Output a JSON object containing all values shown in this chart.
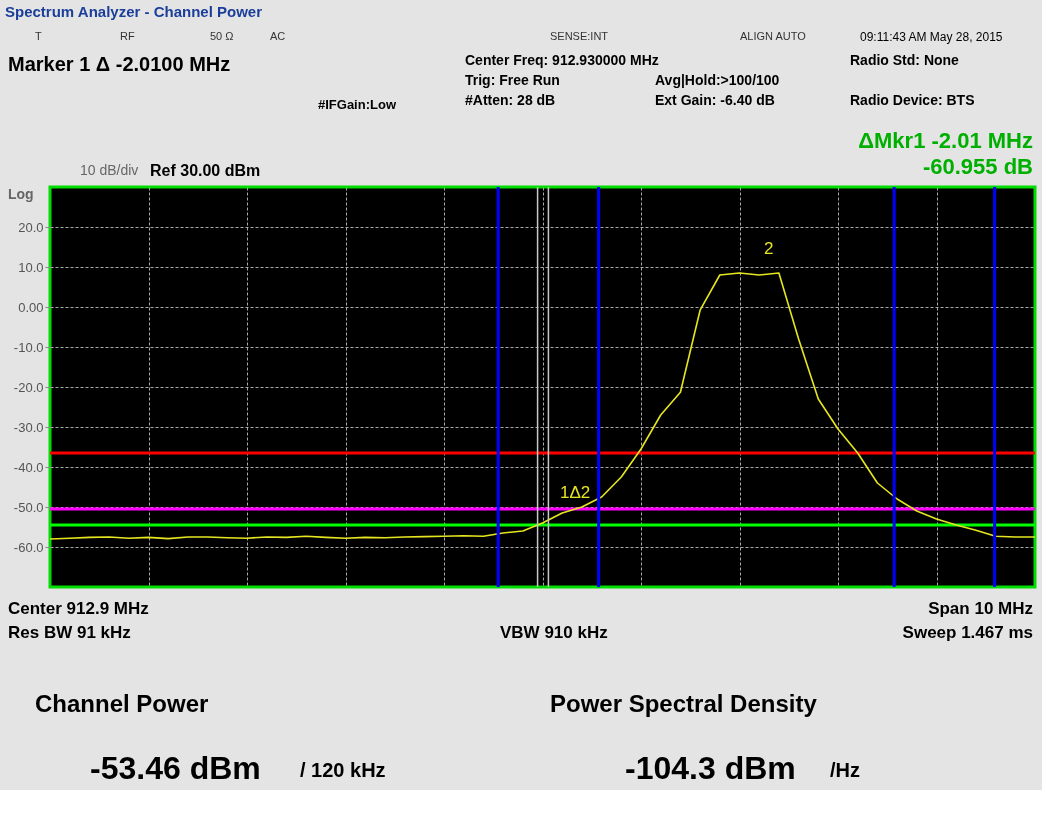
{
  "chart_data": {
    "type": "line",
    "title": "Spectrum Analyzer - Channel Power",
    "annotations": [
      "T",
      "RF",
      "50 Ω",
      "AC",
      "SENSE:INT",
      "ALIGN AUTO",
      "09:11:43 AM May 28, 2015",
      "Marker 1 Δ -2.0100 MHz",
      "Center Freq: 912.930000 MHz",
      "Trig: Free Run",
      "#Atten: 28 dB",
      "Avg|Hold:>100/100",
      "Ext Gain: -6.40 dB",
      "Radio Std: None",
      "Radio Device: BTS",
      "#IFGain:Low",
      "ΔMkr1  -2.01 MHz",
      "-60.955 dB",
      "10 dB/div",
      "Ref 30.00 dBm",
      "Log",
      "Center  912.9 MHz",
      "Res BW  91 kHz",
      "VBW  910 kHz",
      "Span 10 MHz",
      "Sweep  1.467 ms",
      "Channel Power",
      "-53.46 dBm",
      "/ 120 kHz",
      "Power Spectral Density",
      "-104.3 dBm",
      "/Hz",
      "2",
      "1Δ2"
    ],
    "categories": [
      null,
      null,
      null,
      null,
      null,
      null,
      null,
      null,
      null,
      null,
      null,
      null,
      null,
      null,
      null,
      null,
      null,
      null,
      null,
      null,
      null,
      null,
      null,
      null,
      null,
      null,
      null,
      null,
      null,
      null,
      null,
      null,
      null,
      null,
      null,
      null,
      null,
      null,
      null,
      null,
      null,
      null,
      null,
      null,
      null,
      null,
      null,
      null,
      null,
      null,
      null
    ],
    "series": [
      {
        "color": "#e6e620",
        "values": [
          -58,
          -57.8,
          -57.6,
          -57.5,
          -57.8,
          -57.6,
          -57.9,
          -57.5,
          -57.5,
          -57.7,
          -57.8,
          -57.5,
          -57.6,
          -57.3,
          -57.6,
          -57.8,
          -57.6,
          -57.7,
          -57.5,
          -57.4,
          -57.3,
          -57.2,
          -57.3,
          -56.5,
          -56,
          -54,
          -51.5,
          -50,
          -47.5,
          -42.5,
          -35.5,
          -27,
          -21.3,
          -0.8,
          8,
          8.5,
          8,
          8.5,
          -8,
          -23,
          -30.5,
          -36.5,
          -44,
          -48,
          -51,
          -53,
          -54.5,
          -55.8,
          -57.3,
          -57.5,
          -57.5
        ]
      }
    ],
    "ylim": [
      -70,
      30
    ],
    "yticks": [
      {
        "value": 20,
        "label": "20.0"
      },
      {
        "value": 10,
        "label": "10.0"
      },
      {
        "value": 0,
        "label": "0.00"
      },
      {
        "value": -10,
        "label": "-10.0"
      },
      {
        "value": -20,
        "label": "-20.0"
      },
      {
        "value": -30,
        "label": "-30.0"
      },
      {
        "value": -40,
        "label": "-40.0"
      },
      {
        "value": -50,
        "label": "-50.0"
      },
      {
        "value": -60,
        "label": "-60.0"
      }
    ],
    "tick_labels": "y",
    "grid": true,
    "ref_lines": [
      {
        "axis": "y",
        "value": -36.5,
        "color": "#ff0000"
      },
      {
        "axis": "y",
        "value": -50.5,
        "color": "#ff00ff"
      },
      {
        "axis": "y",
        "value": -54.5,
        "color": "#00ff00"
      }
    ]
  }
}
